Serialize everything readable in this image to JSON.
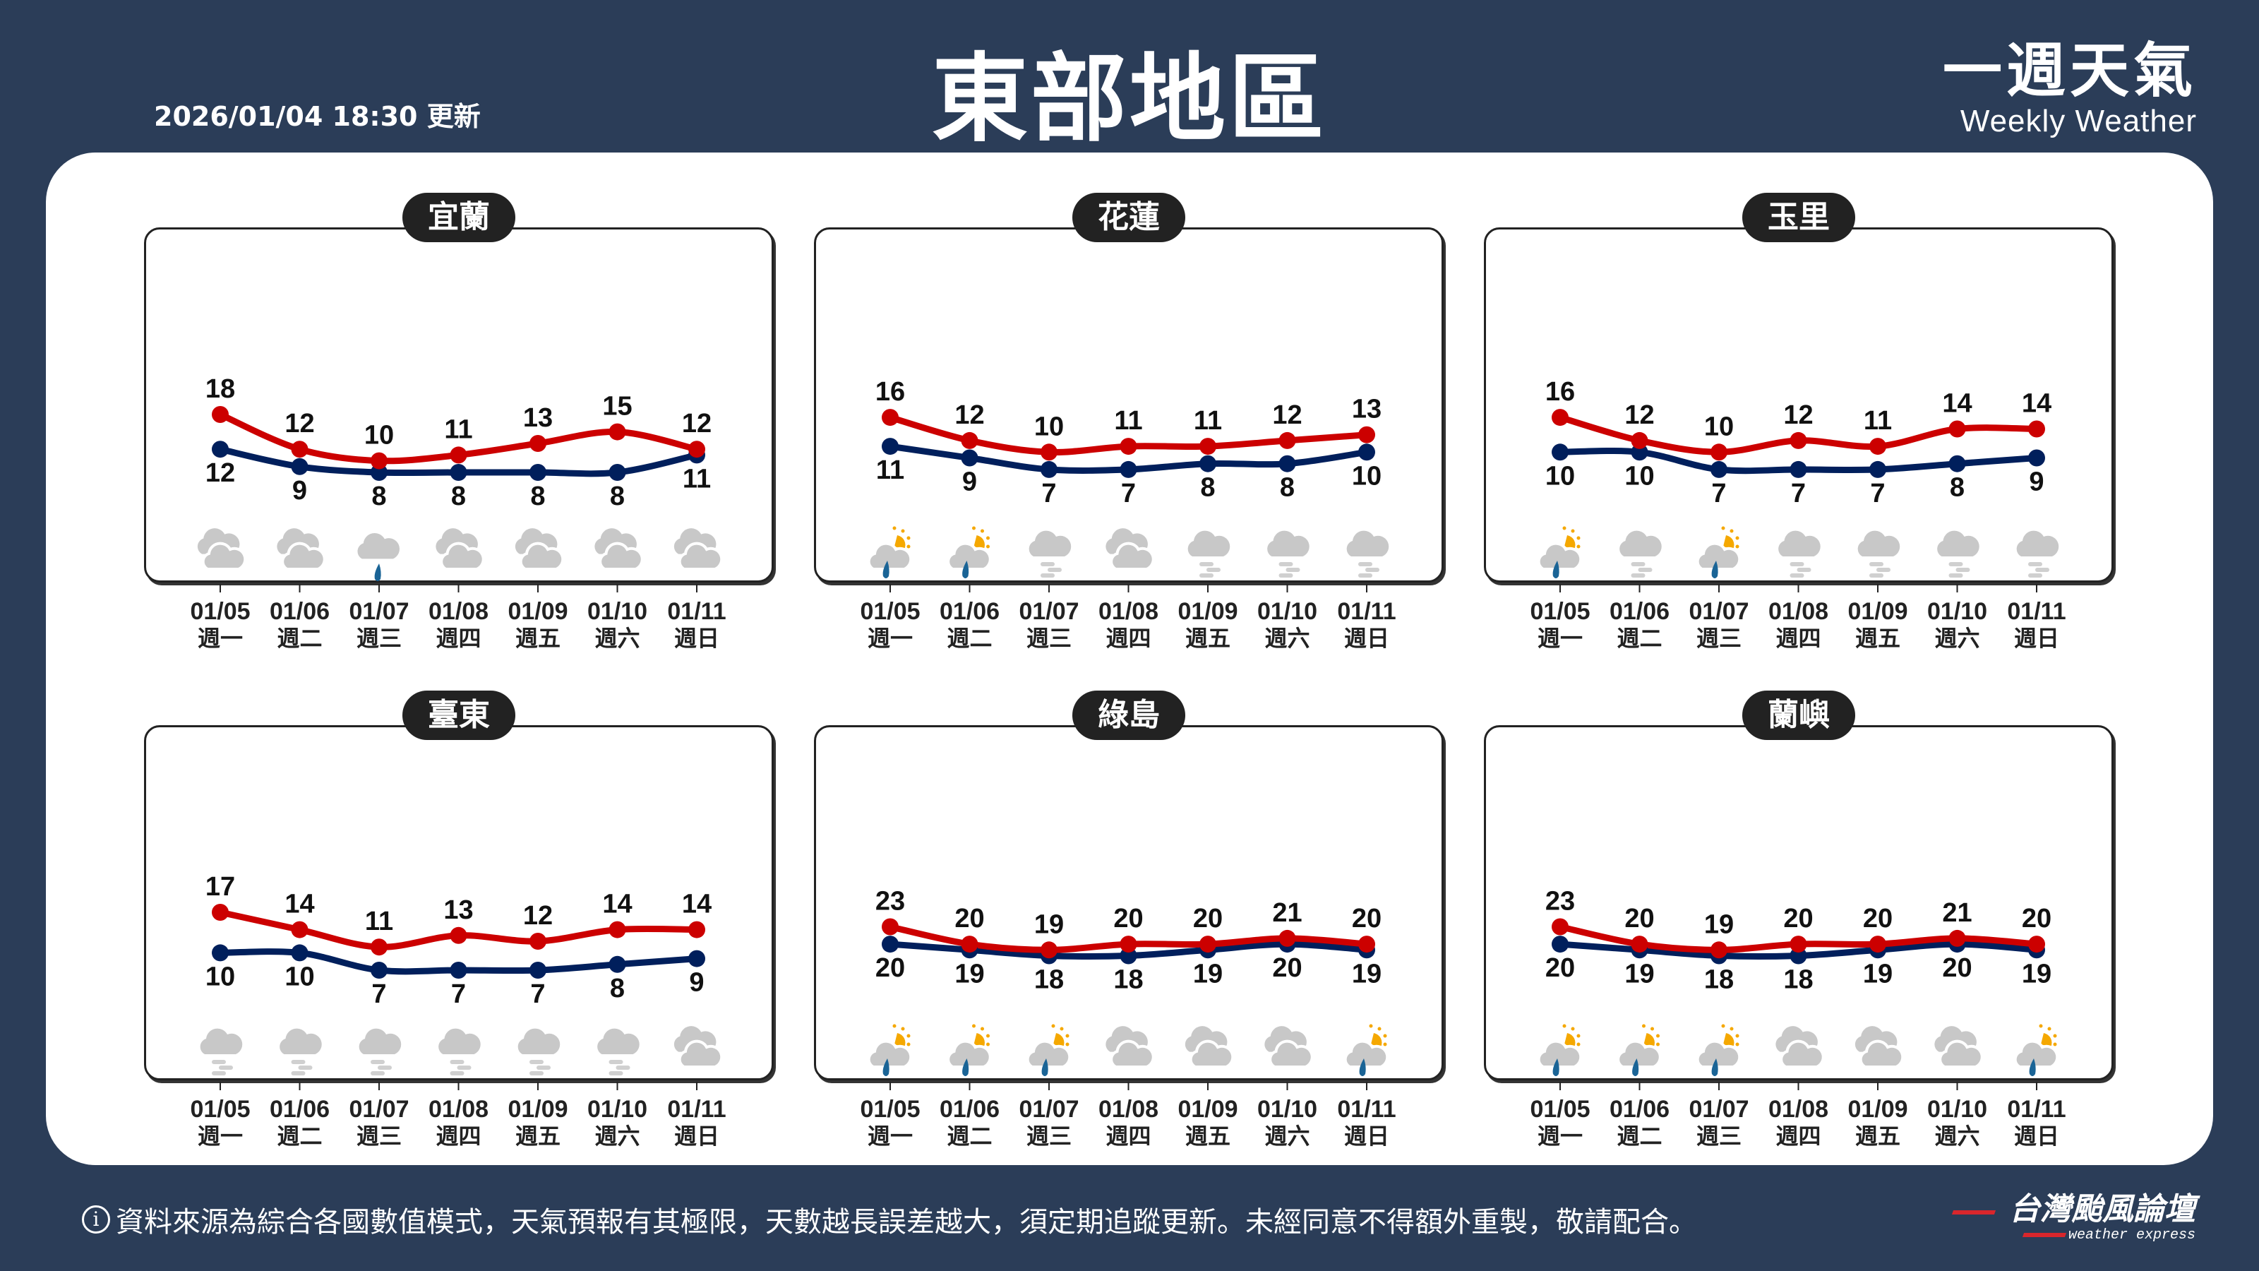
{
  "header": {
    "updated": "2026/01/04 18:30 更新",
    "title": "東部地區",
    "brand_zh": "一週天氣",
    "brand_en": "Weekly Weather"
  },
  "footer": {
    "info_icon": "i",
    "disclaimer": "資料來源為綜合各國數值模式，天氣預報有其極限，天數越長誤差越大，須定期追蹤更新。未經同意不得額外重製，敬請配合。",
    "logo_zh": "台灣颱風論壇",
    "logo_en": "weather express"
  },
  "colors": {
    "background": "#2b3d58",
    "high": "#cc0000",
    "low": "#001f5c",
    "cloud": "#c8c8c8",
    "sun": "#f5a800",
    "rain": "#1a6496"
  },
  "dates": [
    "01/05",
    "01/06",
    "01/07",
    "01/08",
    "01/09",
    "01/10",
    "01/11"
  ],
  "weekdays": [
    "週一",
    "週二",
    "週三",
    "週四",
    "週五",
    "週六",
    "週日"
  ],
  "regions": [
    {
      "name": "宜蘭",
      "high": [
        18,
        12,
        10,
        11,
        13,
        15,
        12
      ],
      "low": [
        12,
        9,
        8,
        8,
        8,
        8,
        11
      ],
      "icons": [
        "cloudy",
        "cloudy",
        "rain",
        "cloudy",
        "cloudy",
        "cloudy",
        "cloudy"
      ]
    },
    {
      "name": "花蓮",
      "high": [
        16,
        12,
        10,
        11,
        11,
        12,
        13
      ],
      "low": [
        11,
        9,
        7,
        7,
        8,
        8,
        10
      ],
      "icons": [
        "sun-rain",
        "sun-rain",
        "fog",
        "cloudy",
        "fog",
        "fog",
        "fog"
      ]
    },
    {
      "name": "玉里",
      "high": [
        16,
        12,
        10,
        12,
        11,
        14,
        14
      ],
      "low": [
        10,
        10,
        7,
        7,
        7,
        8,
        9
      ],
      "icons": [
        "sun-rain",
        "fog",
        "sun-rain",
        "fog",
        "fog",
        "fog",
        "fog"
      ]
    },
    {
      "name": "臺東",
      "high": [
        17,
        14,
        11,
        13,
        12,
        14,
        14
      ],
      "low": [
        10,
        10,
        7,
        7,
        7,
        8,
        9
      ],
      "icons": [
        "fog",
        "fog",
        "fog",
        "fog",
        "fog",
        "fog",
        "cloudy"
      ]
    },
    {
      "name": "綠島",
      "high": [
        23,
        20,
        19,
        20,
        20,
        21,
        20
      ],
      "low": [
        20,
        19,
        18,
        18,
        19,
        20,
        19
      ],
      "icons": [
        "sun-rain",
        "sun-rain",
        "sun-rain",
        "cloudy",
        "cloudy",
        "cloudy",
        "sun-rain"
      ]
    },
    {
      "name": "蘭嶼",
      "high": [
        23,
        20,
        19,
        20,
        20,
        21,
        20
      ],
      "low": [
        20,
        19,
        18,
        18,
        19,
        20,
        19
      ],
      "icons": [
        "sun-rain",
        "sun-rain",
        "sun-rain",
        "cloudy",
        "cloudy",
        "cloudy",
        "sun-rain"
      ]
    }
  ]
}
